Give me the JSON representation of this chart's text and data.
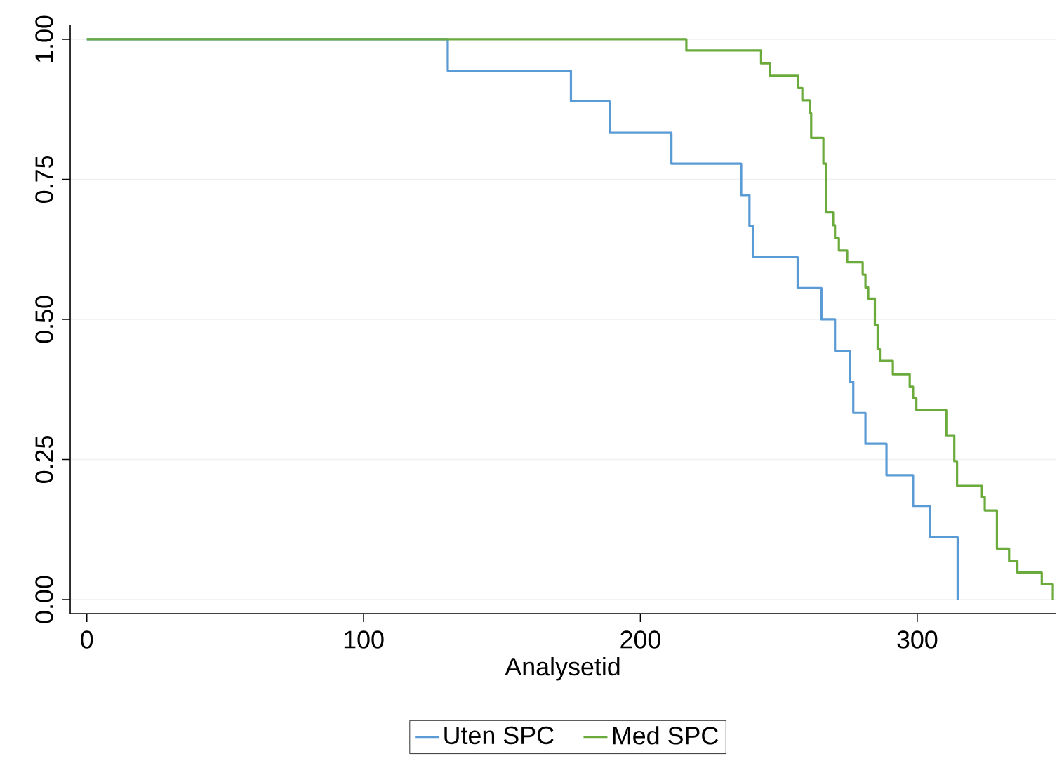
{
  "chart_data": {
    "type": "step",
    "xlabel": "Analysetid",
    "xlim": [
      -6,
      350
    ],
    "ylim": [
      -0.025,
      1.025
    ],
    "xticks": [
      0,
      100,
      200,
      300
    ],
    "yticks": [
      {
        "value": 0,
        "label": "0.00"
      },
      {
        "value": 0.25,
        "label": "0.25"
      },
      {
        "value": 0.5,
        "label": "0.50"
      },
      {
        "value": 0.75,
        "label": "0.75"
      },
      {
        "value": 1,
        "label": "1.00"
      }
    ],
    "grid": "y",
    "legend": "bottom",
    "line_style": "solid",
    "series": [
      {
        "name": "Uten SPC",
        "color": "#5b9bd5",
        "x": [
          0,
          130.4,
          174.9,
          188.9,
          211.2,
          236.4,
          239.4,
          240.6,
          256.8,
          265.4,
          270.3,
          275.7,
          276.9,
          281.3,
          288.9,
          298.5,
          304.6,
          314.6
        ],
        "values": [
          1,
          0.944,
          0.889,
          0.833,
          0.778,
          0.722,
          0.667,
          0.611,
          0.556,
          0.5,
          0.444,
          0.389,
          0.333,
          0.278,
          0.222,
          0.167,
          0.111,
          0
        ]
      },
      {
        "name": "Med SPC",
        "color": "#6aab3c",
        "x": [
          0,
          216.6,
          243.6,
          246.8,
          257,
          258.5,
          261.2,
          261.7,
          266.1,
          267.1,
          269.6,
          270.3,
          271.7,
          274.7,
          280.3,
          281.3,
          282.3,
          284.7,
          285.7,
          286.5,
          291.2,
          297.3,
          298.5,
          299.7,
          310.5,
          313.4,
          314.4,
          323.4,
          324.4,
          328.8,
          333.2,
          336.2,
          345,
          349
        ],
        "values": [
          1,
          0.98,
          0.957,
          0.935,
          0.913,
          0.891,
          0.868,
          0.824,
          0.778,
          0.691,
          0.668,
          0.645,
          0.623,
          0.602,
          0.58,
          0.557,
          0.537,
          0.49,
          0.447,
          0.426,
          0.402,
          0.38,
          0.359,
          0.338,
          0.293,
          0.247,
          0.203,
          0.183,
          0.159,
          0.091,
          0.069,
          0.048,
          0.027,
          0
        ]
      }
    ]
  }
}
